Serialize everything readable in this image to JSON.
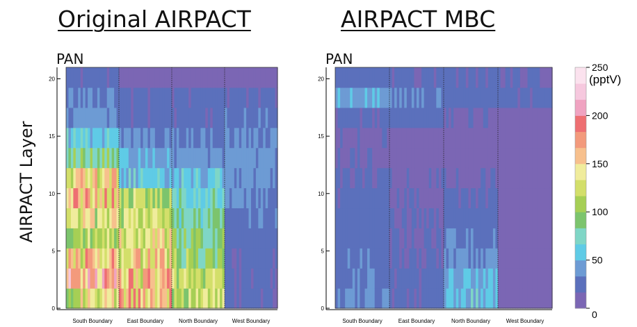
{
  "titles": {
    "left": "Original AIRPACT",
    "right": "AIRPACT MBC"
  },
  "ylabel": "AIRPACT Layer",
  "colorbar": {
    "ticks": [
      "250",
      "200",
      "150",
      "100",
      "50",
      "0"
    ],
    "tick_values": [
      250,
      200,
      150,
      100,
      50,
      0
    ],
    "unit": "(pptV)",
    "colors": [
      "#7b66b4",
      "#5b70bc",
      "#6d9bd4",
      "#5fcbe6",
      "#7fd6c6",
      "#7cc46d",
      "#a6cf55",
      "#d3df6a",
      "#f0ec9c",
      "#f7c08d",
      "#f39a7c",
      "#ee6f72",
      "#f0a3c1",
      "#f6c8de",
      "#fbe2ee"
    ]
  },
  "chart_data": [
    {
      "type": "heatmap",
      "title": "PAN",
      "ylim": [
        0,
        21
      ],
      "yticks": [
        "0",
        "5",
        "10",
        "15",
        "20"
      ],
      "xticks": [
        "South Boundary",
        "East Boundary",
        "North Boundary",
        "West Boundary"
      ],
      "segments": [
        {
          "name": "South Boundary",
          "layers": [
            130,
            180,
            150,
            110,
            130,
            160,
            140,
            90,
            60,
            40,
            30,
            20
          ]
        },
        {
          "name": "East Boundary",
          "layers": [
            160,
            150,
            140,
            135,
            120,
            110,
            60,
            45,
            35,
            20,
            20,
            10
          ]
        },
        {
          "name": "North Boundary",
          "layers": [
            120,
            110,
            100,
            95,
            80,
            70,
            55,
            40,
            30,
            20,
            20,
            10
          ]
        },
        {
          "name": "West Boundary",
          "layers": [
            20,
            20,
            20,
            25,
            30,
            35,
            40,
            40,
            35,
            30,
            20,
            10
          ]
        }
      ]
    },
    {
      "type": "heatmap",
      "title": "PAN",
      "ylim": [
        0,
        21
      ],
      "yticks": [
        "0",
        "5",
        "10",
        "15",
        "20"
      ],
      "xticks": [
        "South Boundary",
        "East Boundary",
        "North Boundary",
        "West Boundary"
      ],
      "segments": [
        {
          "name": "South Boundary",
          "layers": [
            35,
            30,
            28,
            25,
            25,
            20,
            20,
            15,
            15,
            20,
            45,
            25
          ]
        },
        {
          "name": "East Boundary",
          "layers": [
            20,
            20,
            18,
            16,
            15,
            15,
            15,
            12,
            12,
            20,
            30,
            20
          ]
        },
        {
          "name": "North Boundary",
          "layers": [
            60,
            50,
            40,
            30,
            25,
            20,
            15,
            10,
            10,
            15,
            25,
            20
          ]
        },
        {
          "name": "West Boundary",
          "layers": [
            5,
            5,
            5,
            5,
            5,
            5,
            5,
            5,
            5,
            10,
            20,
            15
          ]
        }
      ]
    }
  ]
}
